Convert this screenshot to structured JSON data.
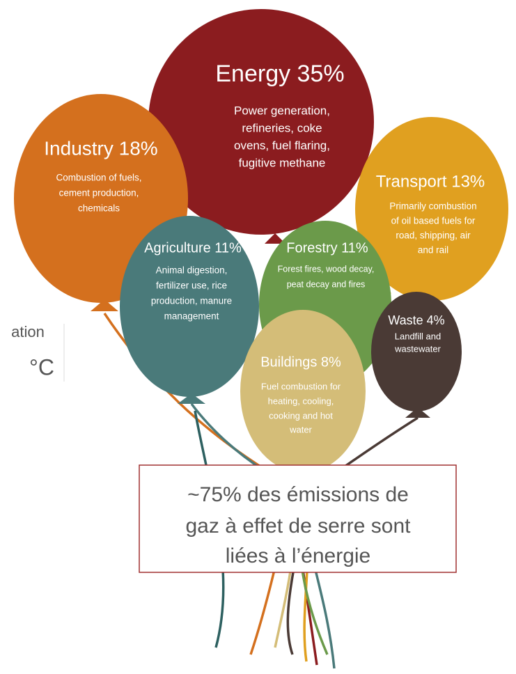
{
  "balloons": [
    {
      "title": "Energy 35%",
      "lines": [
        "Power generation,",
        "refineries, coke",
        "ovens, fuel flaring,",
        "fugitive methane"
      ]
    },
    {
      "title": "Industry 18%",
      "lines": [
        "Combustion of fuels,",
        "cement production,",
        "chemicals"
      ]
    },
    {
      "title": "Transport 13%",
      "lines": [
        "Primarily combustion",
        "of oil based fuels for",
        "road, shipping, air",
        "and rail"
      ]
    },
    {
      "title": "Forestry 11%",
      "lines": [
        "Forest fires, wood decay,",
        "peat decay and fires"
      ]
    },
    {
      "title": "Agriculture 11%",
      "lines": [
        "Animal digestion,",
        "fertilizer use, rice",
        "production, manure",
        "management"
      ]
    },
    {
      "title": "Waste 4%",
      "lines": [
        "Landfill and",
        "wastewater"
      ]
    },
    {
      "title": "Buildings 8%",
      "lines": [
        "Fuel combustion for",
        "heating, cooling,",
        "cooking and hot",
        "water"
      ]
    }
  ],
  "side_text": [
    "ation",
    "°C"
  ],
  "callout": {
    "lines": [
      "~75% des émissions de",
      "gaz à effet de serre sont",
      "liées à l’énergie"
    ]
  }
}
